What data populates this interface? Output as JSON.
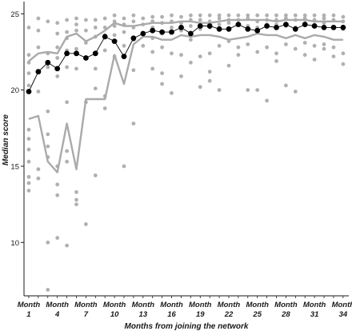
{
  "chart_data": {
    "type": "line",
    "xlabel": "Months from joining the network",
    "ylabel": "Median score",
    "x": [
      1,
      2,
      3,
      4,
      5,
      6,
      7,
      8,
      9,
      10,
      11,
      12,
      13,
      14,
      15,
      16,
      17,
      18,
      19,
      20,
      21,
      22,
      23,
      24,
      25,
      26,
      27,
      28,
      29,
      30,
      31,
      32,
      33,
      34
    ],
    "x_tick_values": [
      1,
      4,
      7,
      10,
      13,
      16,
      19,
      22,
      25,
      28,
      31,
      34
    ],
    "x_tick_prefix": "Month",
    "y_ticks": [
      10,
      15,
      20,
      25
    ],
    "ylim": [
      6.5,
      25.8
    ],
    "xlim": [
      0.5,
      34.6
    ],
    "grid": false,
    "series": [
      {
        "role": "median",
        "color": "#000000",
        "values": [
          19.9,
          21.2,
          21.8,
          21.4,
          22.4,
          22.4,
          22.1,
          22.4,
          23.5,
          23.2,
          22.2,
          23.4,
          23.7,
          23.9,
          23.8,
          23.8,
          24.1,
          23.7,
          24.2,
          24.2,
          24.0,
          24.0,
          24.3,
          24.0,
          23.9,
          24.2,
          24.1,
          24.3,
          24.0,
          24.3,
          24.2,
          24.1,
          24.1,
          24.1
        ]
      },
      {
        "role": "upper-band",
        "color": "#aaaaaa",
        "values": [
          21.9,
          22.4,
          22.5,
          22.4,
          23.5,
          23.7,
          23.2,
          23.5,
          23.9,
          24.4,
          24.2,
          24.2,
          24.3,
          24.4,
          24.4,
          24.4,
          24.5,
          24.5,
          24.4,
          24.4,
          24.5,
          24.6,
          24.6,
          24.6,
          24.6,
          24.6,
          24.5,
          24.6,
          24.6,
          24.6,
          24.5,
          24.5,
          24.5,
          24.5
        ]
      },
      {
        "role": "lower-band",
        "color": "#aaaaaa",
        "values": [
          18.1,
          18.3,
          15.3,
          14.6,
          17.8,
          14.8,
          19.4,
          19.4,
          19.4,
          22.3,
          20.4,
          23.0,
          23.5,
          23.5,
          23.3,
          23.3,
          23.6,
          23.5,
          23.6,
          23.6,
          23.5,
          23.3,
          23.4,
          23.5,
          23.7,
          23.6,
          23.6,
          23.4,
          23.6,
          23.4,
          23.6,
          23.5,
          23.3,
          23.3
        ]
      }
    ],
    "scatter_color": "#b0b0b0",
    "scatter": [
      [
        1,
        24.1
      ],
      [
        1,
        22.3
      ],
      [
        1,
        21.8
      ],
      [
        1,
        21.1
      ],
      [
        1,
        20.3
      ],
      [
        1,
        17.4
      ],
      [
        1,
        16.8
      ],
      [
        1,
        16.1
      ],
      [
        1,
        15.3
      ],
      [
        1,
        14.3
      ],
      [
        1,
        13.9
      ],
      [
        1,
        13.4
      ],
      [
        2,
        24.7
      ],
      [
        2,
        23.9
      ],
      [
        2,
        22.8
      ],
      [
        2,
        21.2
      ],
      [
        2,
        19.9
      ],
      [
        2,
        14.8
      ],
      [
        2,
        14.2
      ],
      [
        3,
        24.5
      ],
      [
        3,
        22.4
      ],
      [
        3,
        21.5
      ],
      [
        3,
        18.6
      ],
      [
        3,
        17.1
      ],
      [
        3,
        16.3
      ],
      [
        3,
        15.6
      ],
      [
        3,
        10.0
      ],
      [
        3,
        6.9
      ],
      [
        4,
        24.4
      ],
      [
        4,
        23.7
      ],
      [
        4,
        22.8
      ],
      [
        4,
        22.1
      ],
      [
        4,
        20.9
      ],
      [
        4,
        15.0
      ],
      [
        4,
        13.8
      ],
      [
        4,
        13.1
      ],
      [
        4,
        10.3
      ],
      [
        5,
        24.6
      ],
      [
        5,
        23.8
      ],
      [
        5,
        23.4
      ],
      [
        5,
        22.6
      ],
      [
        5,
        21.5
      ],
      [
        5,
        19.2
      ],
      [
        5,
        16.0
      ],
      [
        5,
        15.3
      ],
      [
        5,
        9.8
      ],
      [
        6,
        24.7
      ],
      [
        6,
        24.3
      ],
      [
        6,
        23.9
      ],
      [
        6,
        22.7
      ],
      [
        6,
        21.4
      ],
      [
        6,
        13.3
      ],
      [
        6,
        12.8
      ],
      [
        6,
        12.5
      ],
      [
        7,
        24.6
      ],
      [
        7,
        23.9
      ],
      [
        7,
        23.1
      ],
      [
        7,
        19.2
      ],
      [
        7,
        11.2
      ],
      [
        8,
        24.6
      ],
      [
        8,
        24.1
      ],
      [
        8,
        23.5
      ],
      [
        8,
        21.4
      ],
      [
        8,
        20.1
      ],
      [
        8,
        14.4
      ],
      [
        9,
        24.7
      ],
      [
        9,
        24.1
      ],
      [
        9,
        23.6
      ],
      [
        9,
        22.6
      ],
      [
        9,
        19.6
      ],
      [
        9,
        18.8
      ],
      [
        10,
        24.9
      ],
      [
        10,
        24.5
      ],
      [
        10,
        24.2
      ],
      [
        10,
        23.6
      ],
      [
        10,
        22.2
      ],
      [
        11,
        24.7
      ],
      [
        11,
        24.3
      ],
      [
        11,
        23.8
      ],
      [
        11,
        22.9
      ],
      [
        11,
        15.0
      ],
      [
        12,
        24.9
      ],
      [
        12,
        24.5
      ],
      [
        12,
        24.1
      ],
      [
        12,
        23.3
      ],
      [
        12,
        21.3
      ],
      [
        12,
        17.8
      ],
      [
        13,
        24.7
      ],
      [
        13,
        24.3
      ],
      [
        13,
        23.7
      ],
      [
        13,
        22.9
      ],
      [
        14,
        24.8
      ],
      [
        14,
        24.5
      ],
      [
        14,
        24.1
      ],
      [
        14,
        23.4
      ],
      [
        14,
        22.5
      ],
      [
        14,
        21.4
      ],
      [
        15,
        24.8
      ],
      [
        15,
        24.4
      ],
      [
        15,
        23.7
      ],
      [
        15,
        22.8
      ],
      [
        15,
        21.1
      ],
      [
        15,
        20.4
      ],
      [
        16,
        24.9
      ],
      [
        16,
        24.5
      ],
      [
        16,
        24.1
      ],
      [
        16,
        22.4
      ],
      [
        16,
        19.8
      ],
      [
        17,
        24.8
      ],
      [
        17,
        24.4
      ],
      [
        17,
        23.9
      ],
      [
        17,
        22.3
      ],
      [
        17,
        20.9
      ],
      [
        18,
        24.9
      ],
      [
        18,
        24.6
      ],
      [
        18,
        24.2
      ],
      [
        18,
        23.3
      ],
      [
        18,
        21.8
      ],
      [
        19,
        24.9
      ],
      [
        19,
        24.6
      ],
      [
        19,
        24.0
      ],
      [
        19,
        22.2
      ],
      [
        19,
        20.2
      ],
      [
        20,
        24.9
      ],
      [
        20,
        24.5
      ],
      [
        20,
        24.1
      ],
      [
        20,
        22.4
      ],
      [
        20,
        21.2
      ],
      [
        20,
        20.6
      ],
      [
        21,
        24.9
      ],
      [
        21,
        24.7
      ],
      [
        21,
        24.3
      ],
      [
        21,
        22.9
      ],
      [
        21,
        20.0
      ],
      [
        22,
        24.9
      ],
      [
        22,
        24.6
      ],
      [
        22,
        24.4
      ],
      [
        22,
        23.2
      ],
      [
        22,
        21.6
      ],
      [
        23,
        24.9
      ],
      [
        23,
        24.6
      ],
      [
        23,
        24.3
      ],
      [
        23,
        22.8
      ],
      [
        23,
        22.3
      ],
      [
        24,
        24.9
      ],
      [
        24,
        24.7
      ],
      [
        24,
        24.2
      ],
      [
        24,
        23.0
      ],
      [
        24,
        20.0
      ],
      [
        25,
        24.9
      ],
      [
        25,
        24.5
      ],
      [
        25,
        24.1
      ],
      [
        25,
        22.5
      ],
      [
        25,
        20.0
      ],
      [
        26,
        24.9
      ],
      [
        26,
        24.6
      ],
      [
        26,
        24.3
      ],
      [
        26,
        22.8
      ],
      [
        26,
        19.3
      ],
      [
        27,
        24.9
      ],
      [
        27,
        24.6
      ],
      [
        27,
        24.3
      ],
      [
        27,
        22.4
      ],
      [
        27,
        21.9
      ],
      [
        28,
        24.9
      ],
      [
        28,
        24.7
      ],
      [
        28,
        24.2
      ],
      [
        28,
        23.0
      ],
      [
        28,
        20.3
      ],
      [
        29,
        24.9
      ],
      [
        29,
        24.6
      ],
      [
        29,
        24.1
      ],
      [
        29,
        22.7
      ],
      [
        29,
        19.9
      ],
      [
        30,
        24.9
      ],
      [
        30,
        24.7
      ],
      [
        30,
        24.4
      ],
      [
        30,
        23.1
      ],
      [
        30,
        22.3
      ],
      [
        31,
        24.9
      ],
      [
        31,
        24.6
      ],
      [
        31,
        24.3
      ],
      [
        31,
        22.9
      ],
      [
        31,
        22.0
      ],
      [
        32,
        24.9
      ],
      [
        32,
        24.7
      ],
      [
        32,
        24.4
      ],
      [
        32,
        23.0
      ],
      [
        32,
        22.7
      ],
      [
        33,
        24.9
      ],
      [
        33,
        24.6
      ],
      [
        33,
        24.1
      ],
      [
        33,
        22.8
      ],
      [
        33,
        22.2
      ],
      [
        34,
        24.8
      ],
      [
        34,
        24.5
      ],
      [
        34,
        24.0
      ],
      [
        34,
        22.4
      ],
      [
        34,
        21.7
      ]
    ]
  }
}
